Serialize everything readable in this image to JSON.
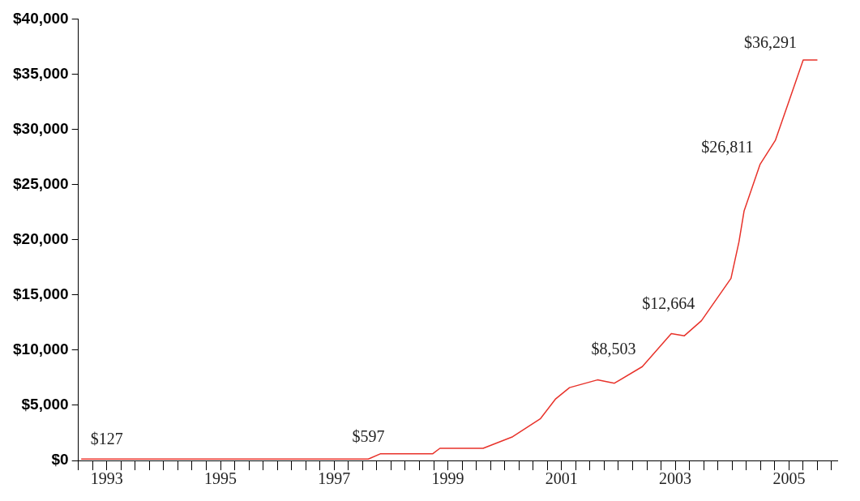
{
  "chart_data": {
    "type": "line",
    "x": [
      1992.55,
      1997.6,
      1997.81,
      1998.73,
      1998.86,
      1999.62,
      2000.14,
      2000.63,
      2000.89,
      2001.14,
      2001.63,
      2001.93,
      2002.42,
      2002.93,
      2003.16,
      2003.46,
      2003.98,
      2004.12,
      2004.21,
      2004.49,
      2004.76,
      2005.01,
      2005.25,
      2005.5
    ],
    "series": [
      {
        "color": "#e8322a",
        "values": [
          127,
          127,
          597,
          597,
          1100,
          1100,
          2150,
          3800,
          5550,
          6600,
          7300,
          7000,
          8503,
          11500,
          11300,
          12664,
          16500,
          19800,
          22600,
          26811,
          29000,
          32700,
          36291,
          36291
        ]
      }
    ],
    "xlim": [
      1992.5,
      2005.85
    ],
    "xticks": [
      {
        "value": 1992.5,
        "label": null
      },
      {
        "value": 1992.75,
        "label": null
      },
      1993,
      {
        "value": 1993.25,
        "label": null
      },
      {
        "value": 1993.5,
        "label": null
      },
      {
        "value": 1993.75,
        "label": null
      },
      {
        "value": 1994,
        "label": null
      },
      {
        "value": 1994.25,
        "label": null
      },
      {
        "value": 1994.5,
        "label": null
      },
      {
        "value": 1994.75,
        "label": null
      },
      1995,
      {
        "value": 1995.25,
        "label": null
      },
      {
        "value": 1995.5,
        "label": null
      },
      {
        "value": 1995.75,
        "label": null
      },
      {
        "value": 1996,
        "label": null
      },
      {
        "value": 1996.25,
        "label": null
      },
      {
        "value": 1996.5,
        "label": null
      },
      {
        "value": 1996.75,
        "label": null
      },
      1997,
      {
        "value": 1997.25,
        "label": null
      },
      {
        "value": 1997.5,
        "label": null
      },
      {
        "value": 1997.75,
        "label": null
      },
      {
        "value": 1998,
        "label": null
      },
      {
        "value": 1998.25,
        "label": null
      },
      {
        "value": 1998.5,
        "label": null
      },
      {
        "value": 1998.75,
        "label": null
      },
      1999,
      {
        "value": 1999.25,
        "label": null
      },
      {
        "value": 1999.5,
        "label": null
      },
      {
        "value": 1999.75,
        "label": null
      },
      {
        "value": 2000,
        "label": null
      },
      {
        "value": 2000.25,
        "label": null
      },
      {
        "value": 2000.5,
        "label": null
      },
      {
        "value": 2000.75,
        "label": null
      },
      2001,
      {
        "value": 2001.25,
        "label": null
      },
      {
        "value": 2001.5,
        "label": null
      },
      {
        "value": 2001.75,
        "label": null
      },
      {
        "value": 2002,
        "label": null
      },
      {
        "value": 2002.25,
        "label": null
      },
      {
        "value": 2002.5,
        "label": null
      },
      {
        "value": 2002.75,
        "label": null
      },
      2003,
      {
        "value": 2003.25,
        "label": null
      },
      {
        "value": 2003.5,
        "label": null
      },
      {
        "value": 2003.75,
        "label": null
      },
      {
        "value": 2004,
        "label": null
      },
      {
        "value": 2004.25,
        "label": null
      },
      {
        "value": 2004.5,
        "label": null
      },
      {
        "value": 2004.75,
        "label": null
      },
      2005,
      {
        "value": 2005.25,
        "label": null
      },
      {
        "value": 2005.5,
        "label": null
      },
      {
        "value": 2005.75,
        "label": null
      }
    ],
    "ylim": [
      0,
      40000
    ],
    "yticks": [
      {
        "value": 0,
        "label": "$0"
      },
      {
        "value": 5000,
        "label": "$5,000"
      },
      {
        "value": 10000,
        "label": "$10,000"
      },
      {
        "value": 15000,
        "label": "$15,000"
      },
      {
        "value": 20000,
        "label": "$20,000"
      },
      {
        "value": 25000,
        "label": "$25,000"
      },
      {
        "value": 30000,
        "label": "$30,000"
      },
      {
        "value": 35000,
        "label": "$35,000"
      },
      {
        "value": 40000,
        "label": "$40,000"
      }
    ],
    "annotations": [
      {
        "text": "$127",
        "x": 1993,
        "y": 127
      },
      {
        "text": "$597",
        "x": 1998,
        "y": 597
      },
      {
        "text": "$8,503",
        "x": 2002.42,
        "y": 8503
      },
      {
        "text": "$12,664",
        "x": 2003.46,
        "y": 12664
      },
      {
        "text": "$26,811",
        "x": 2004.49,
        "y": 26811
      },
      {
        "text": "$36,291",
        "x": 2005.25,
        "y": 36291
      }
    ],
    "grid": false,
    "legend": false,
    "marker": "none",
    "line_style": "solid"
  }
}
